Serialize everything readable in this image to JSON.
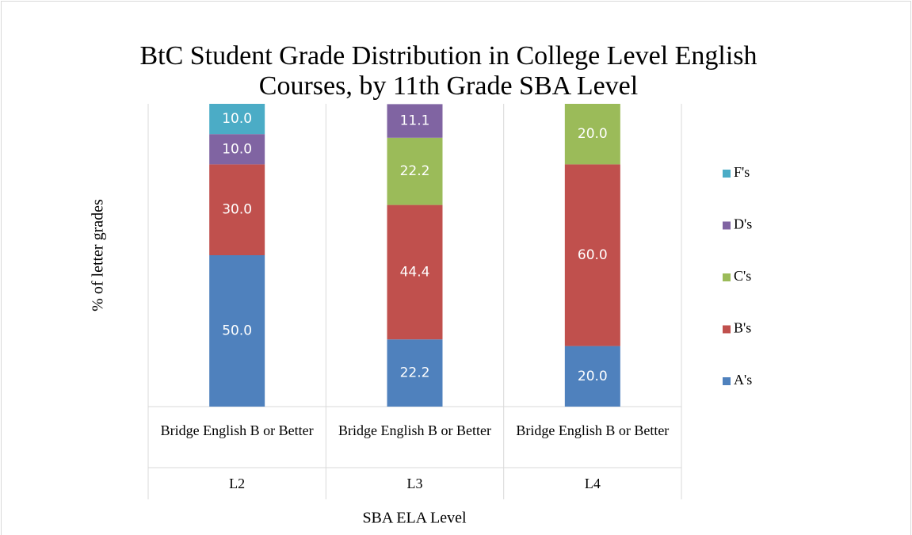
{
  "chart_data": {
    "type": "stacked_bar",
    "title": "BtC Student Grade Distribution in College Level English Courses, by 11th Grade SBA Level",
    "y_label": "% of letter grades",
    "x_label": "SBA ELA Level",
    "categories": [
      "L2",
      "L3",
      "L4"
    ],
    "subcategories": [
      "Bridge English B or Better",
      "Bridge English B or Better",
      "Bridge English B or Better"
    ],
    "ylim": [
      0,
      100
    ],
    "legend": "right",
    "series": [
      {
        "name": "A's",
        "color": "#4f81bd",
        "values": [
          50,
          22.2,
          20
        ],
        "value_labels": [
          "50.0",
          "22.2",
          "20.0"
        ]
      },
      {
        "name": "B's",
        "color": "#c0504d",
        "values": [
          30,
          44.4,
          60
        ],
        "value_labels": [
          "30.0",
          "44.4",
          "60.0"
        ]
      },
      {
        "name": "C's",
        "color": "#9bbb59",
        "values": [
          0,
          22.2,
          20
        ],
        "value_labels": [
          null,
          "22.2",
          "20.0"
        ]
      },
      {
        "name": "D's",
        "color": "#8064a2",
        "values": [
          10,
          11.1,
          0
        ],
        "value_labels": [
          "10.0",
          "11.1",
          null
        ]
      },
      {
        "name": "F's",
        "color": "#4bacc6",
        "values": [
          10,
          0,
          0
        ],
        "value_labels": [
          "10.0",
          null,
          null
        ]
      }
    ]
  }
}
